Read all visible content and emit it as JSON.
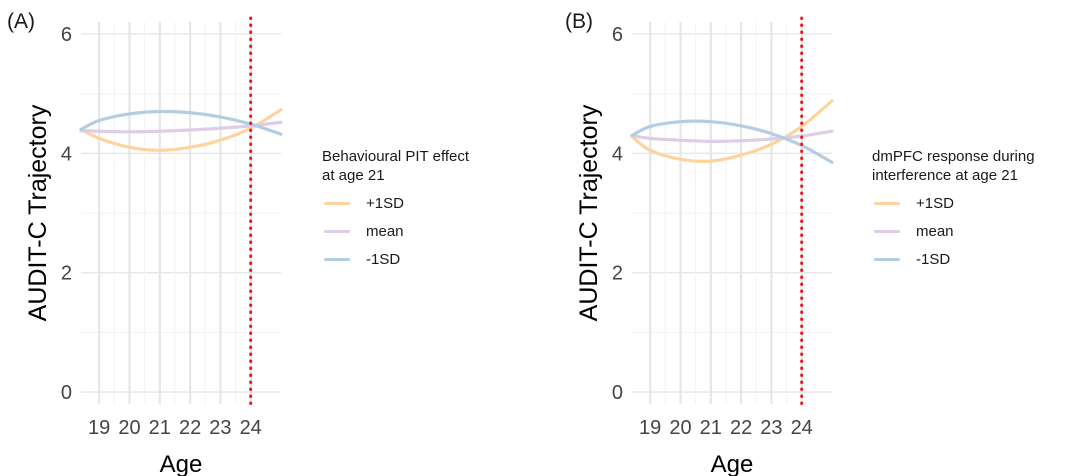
{
  "chart_data": [
    {
      "type": "line",
      "panel_label": "(A)",
      "xlabel": "Age",
      "ylabel": "AUDIT-C Trajectory",
      "xlim": [
        18.4,
        25
      ],
      "ylim": [
        -0.2,
        6.2
      ],
      "x_ticks": [
        19,
        20,
        21,
        22,
        23,
        24
      ],
      "y_ticks": [
        0,
        2,
        4,
        6
      ],
      "grid": true,
      "reference_line": {
        "x": 24,
        "color": "#e41a1c",
        "style": "dotted"
      },
      "legend": {
        "title": [
          "Behavioural PIT effect",
          "at age 21"
        ],
        "placement": "right"
      },
      "series": [
        {
          "name": "+1SD",
          "color": "#fdd49e",
          "x": [
            18.4,
            19,
            20,
            21,
            22,
            23,
            24,
            25
          ],
          "y": [
            4.4,
            4.25,
            4.1,
            4.05,
            4.1,
            4.22,
            4.42,
            4.73
          ]
        },
        {
          "name": "mean",
          "color": "#dccde8",
          "x": [
            18.4,
            19,
            20,
            21,
            22,
            23,
            24,
            25
          ],
          "y": [
            4.38,
            4.37,
            4.36,
            4.37,
            4.39,
            4.42,
            4.46,
            4.52
          ]
        },
        {
          "name": "-1SD",
          "color": "#b3cde3",
          "x": [
            18.4,
            19,
            20,
            21,
            22,
            23,
            24,
            25
          ],
          "y": [
            4.4,
            4.55,
            4.66,
            4.7,
            4.68,
            4.61,
            4.49,
            4.32
          ]
        }
      ]
    },
    {
      "type": "line",
      "panel_label": "(B)",
      "xlabel": "Age",
      "ylabel": "AUDIT-C Trajectory",
      "xlim": [
        18.4,
        25
      ],
      "ylim": [
        -0.2,
        6.2
      ],
      "x_ticks": [
        19,
        20,
        21,
        22,
        23,
        24
      ],
      "y_ticks": [
        0,
        2,
        4,
        6
      ],
      "grid": true,
      "reference_line": {
        "x": 24,
        "color": "#e41a1c",
        "style": "dotted"
      },
      "legend": {
        "title": [
          "dmPFC response during",
          "interference at age 21"
        ],
        "placement": "right"
      },
      "series": [
        {
          "name": "+1SD",
          "color": "#fdd49e",
          "x": [
            18.4,
            19,
            20,
            21,
            22,
            23,
            24,
            25
          ],
          "y": [
            4.28,
            4.05,
            3.9,
            3.87,
            3.97,
            4.15,
            4.45,
            4.88
          ]
        },
        {
          "name": "mean",
          "color": "#dccde8",
          "x": [
            18.4,
            19,
            20,
            21,
            22,
            23,
            24,
            25
          ],
          "y": [
            4.3,
            4.25,
            4.22,
            4.2,
            4.21,
            4.24,
            4.29,
            4.37
          ]
        },
        {
          "name": "-1SD",
          "color": "#b3cde3",
          "x": [
            18.4,
            19,
            20,
            21,
            22,
            23,
            24,
            25
          ],
          "y": [
            4.3,
            4.45,
            4.53,
            4.53,
            4.46,
            4.33,
            4.13,
            3.85
          ]
        }
      ]
    }
  ]
}
